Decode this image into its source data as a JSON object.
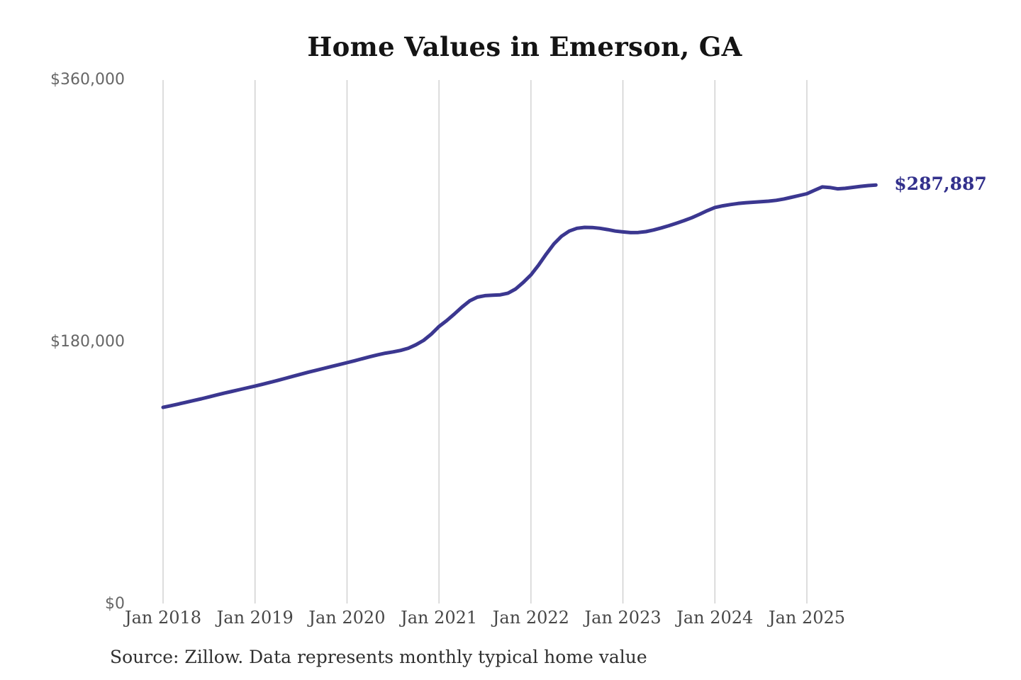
{
  "page": {
    "background_color": "#ffffff"
  },
  "chart": {
    "title": "Home Values in Emerson, GA",
    "source_note": "Source: Zillow. Data represents monthly typical home value",
    "end_label": "$287,887",
    "colors": {
      "line": "#3b3790",
      "end_label": "#32308c",
      "gridline": "#cbcbcb",
      "y_tick_text": "#666666",
      "x_tick_text": "#474747",
      "title_text": "#141414",
      "source_text": "#303030"
    }
  },
  "chart_data": {
    "type": "line",
    "title": "Home Values in Emerson, GA",
    "series_name": "Typical home value",
    "unit": "USD",
    "frequency": "monthly",
    "legend": "none",
    "grid": "vertical-only",
    "ylim": [
      0,
      360000
    ],
    "y_ticks": [
      {
        "label": "$0",
        "value": 0
      },
      {
        "label": "$180,000",
        "value": 180000
      },
      {
        "label": "$360,000",
        "value": 360000
      }
    ],
    "x_tick_labels": [
      "Jan 2018",
      "Jan 2019",
      "Jan 2020",
      "Jan 2021",
      "Jan 2022",
      "Jan 2023",
      "Jan 2024",
      "Jan 2025"
    ],
    "latest_value": 287887,
    "latest_value_label": "$287,887",
    "months": [
      "2018-01",
      "2018-02",
      "2018-03",
      "2018-04",
      "2018-05",
      "2018-06",
      "2018-07",
      "2018-08",
      "2018-09",
      "2018-10",
      "2018-11",
      "2018-12",
      "2019-01",
      "2019-02",
      "2019-03",
      "2019-04",
      "2019-05",
      "2019-06",
      "2019-07",
      "2019-08",
      "2019-09",
      "2019-10",
      "2019-11",
      "2019-12",
      "2020-01",
      "2020-02",
      "2020-03",
      "2020-04",
      "2020-05",
      "2020-06",
      "2020-07",
      "2020-08",
      "2020-09",
      "2020-10",
      "2020-11",
      "2020-12",
      "2021-01",
      "2021-02",
      "2021-03",
      "2021-04",
      "2021-05",
      "2021-06",
      "2021-07",
      "2021-08",
      "2021-09",
      "2021-10",
      "2021-11",
      "2021-12",
      "2022-01",
      "2022-02",
      "2022-03",
      "2022-04",
      "2022-05",
      "2022-06",
      "2022-07",
      "2022-08",
      "2022-09",
      "2022-10",
      "2022-11",
      "2022-12",
      "2023-01",
      "2023-02",
      "2023-03",
      "2023-04",
      "2023-05",
      "2023-06",
      "2023-07",
      "2023-08",
      "2023-09",
      "2023-10",
      "2023-11",
      "2023-12",
      "2024-01",
      "2024-02",
      "2024-03",
      "2024-04",
      "2024-05",
      "2024-06",
      "2024-07",
      "2024-08",
      "2024-09",
      "2024-10",
      "2024-11",
      "2024-12",
      "2025-01",
      "2025-02",
      "2025-03",
      "2025-04",
      "2025-05",
      "2025-06",
      "2025-07",
      "2025-08",
      "2025-09",
      "2025-10"
    ],
    "values": [
      135200,
      136300,
      137500,
      138700,
      139900,
      141100,
      142400,
      143700,
      145000,
      146200,
      147400,
      148600,
      149800,
      151100,
      152400,
      153800,
      155200,
      156600,
      158000,
      159400,
      160700,
      162000,
      163300,
      164600,
      165900,
      167200,
      168600,
      170000,
      171300,
      172400,
      173300,
      174300,
      175800,
      178200,
      181200,
      185500,
      190700,
      194800,
      199300,
      204100,
      208300,
      210900,
      211900,
      212200,
      212500,
      213600,
      216500,
      221000,
      226200,
      233000,
      240500,
      247500,
      252800,
      256300,
      258200,
      258800,
      258700,
      258200,
      257300,
      256300,
      255700,
      255200,
      255300,
      255900,
      257000,
      258400,
      260000,
      261700,
      263500,
      265500,
      267800,
      270300,
      272500,
      273600,
      274500,
      275200,
      275700,
      276100,
      276400,
      276800,
      277400,
      278300,
      279500,
      280700,
      281900,
      284300,
      286600,
      286200,
      285300,
      285600,
      286300,
      287000,
      287500,
      287887
    ]
  }
}
